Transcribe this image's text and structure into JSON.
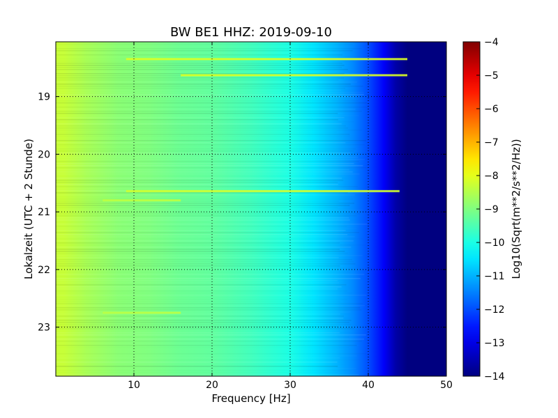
{
  "chart_data": {
    "type": "heatmap",
    "title": "BW BE1 HHZ: 2019-09-10",
    "xlabel": "Frequency [Hz]",
    "ylabel": "Lokalzeit (UTC + 2 Stunde)",
    "xlim": [
      0,
      50
    ],
    "ylim": [
      18.05,
      23.85
    ],
    "y_inverted": true,
    "x_ticks": [
      {
        "value": 10,
        "label": "10"
      },
      {
        "value": 20,
        "label": "20"
      },
      {
        "value": 30,
        "label": "30"
      },
      {
        "value": 40,
        "label": "40"
      },
      {
        "value": 50,
        "label": "50"
      }
    ],
    "y_ticks": [
      {
        "value": 19,
        "label": "19"
      },
      {
        "value": 20,
        "label": "20"
      },
      {
        "value": 21,
        "label": "21"
      },
      {
        "value": 22,
        "label": "22"
      },
      {
        "value": 23,
        "label": "23"
      }
    ],
    "grid": true,
    "colormap": "jet",
    "colorbar": {
      "label": "Log10(Sqrt(m**2/s**2/Hz))",
      "min": -14,
      "max": -4,
      "ticks": [
        {
          "value": -4,
          "label": "−4"
        },
        {
          "value": -5,
          "label": "−5"
        },
        {
          "value": -6,
          "label": "−6"
        },
        {
          "value": -7,
          "label": "−7"
        },
        {
          "value": -8,
          "label": "−8"
        },
        {
          "value": -9,
          "label": "−9"
        },
        {
          "value": -10,
          "label": "−10"
        },
        {
          "value": -11,
          "label": "−11"
        },
        {
          "value": -12,
          "label": "−12"
        },
        {
          "value": -13,
          "label": "−13"
        },
        {
          "value": -14,
          "label": "−14"
        }
      ]
    },
    "spectrum_profile": [
      {
        "freq": 0,
        "level": -8.3
      },
      {
        "freq": 1,
        "level": -8.3
      },
      {
        "freq": 4,
        "level": -8.6
      },
      {
        "freq": 8,
        "level": -8.9
      },
      {
        "freq": 12,
        "level": -9.0
      },
      {
        "freq": 16,
        "level": -9.2
      },
      {
        "freq": 20,
        "level": -9.3
      },
      {
        "freq": 25,
        "level": -9.6
      },
      {
        "freq": 30,
        "level": -10.0
      },
      {
        "freq": 33,
        "level": -10.5
      },
      {
        "freq": 36,
        "level": -11.0
      },
      {
        "freq": 38,
        "level": -11.4
      },
      {
        "freq": 40,
        "level": -12.0
      },
      {
        "freq": 42,
        "level": -12.8
      },
      {
        "freq": 43.5,
        "level": -13.6
      },
      {
        "freq": 45,
        "level": -14.0
      },
      {
        "freq": 50,
        "level": -14.0
      }
    ],
    "bright_bands": [
      {
        "time": 18.35,
        "freq_start": 9,
        "freq_end": 45,
        "level": -8.1
      },
      {
        "time": 18.63,
        "freq_start": 16,
        "freq_end": 45,
        "level": -8.1
      },
      {
        "time": 20.64,
        "freq_start": 9,
        "freq_end": 44,
        "level": -8.2
      },
      {
        "time": 20.8,
        "freq_start": 6,
        "freq_end": 16,
        "level": -8.4
      },
      {
        "time": 22.75,
        "freq_start": 6,
        "freq_end": 16,
        "level": -8.4
      }
    ]
  }
}
